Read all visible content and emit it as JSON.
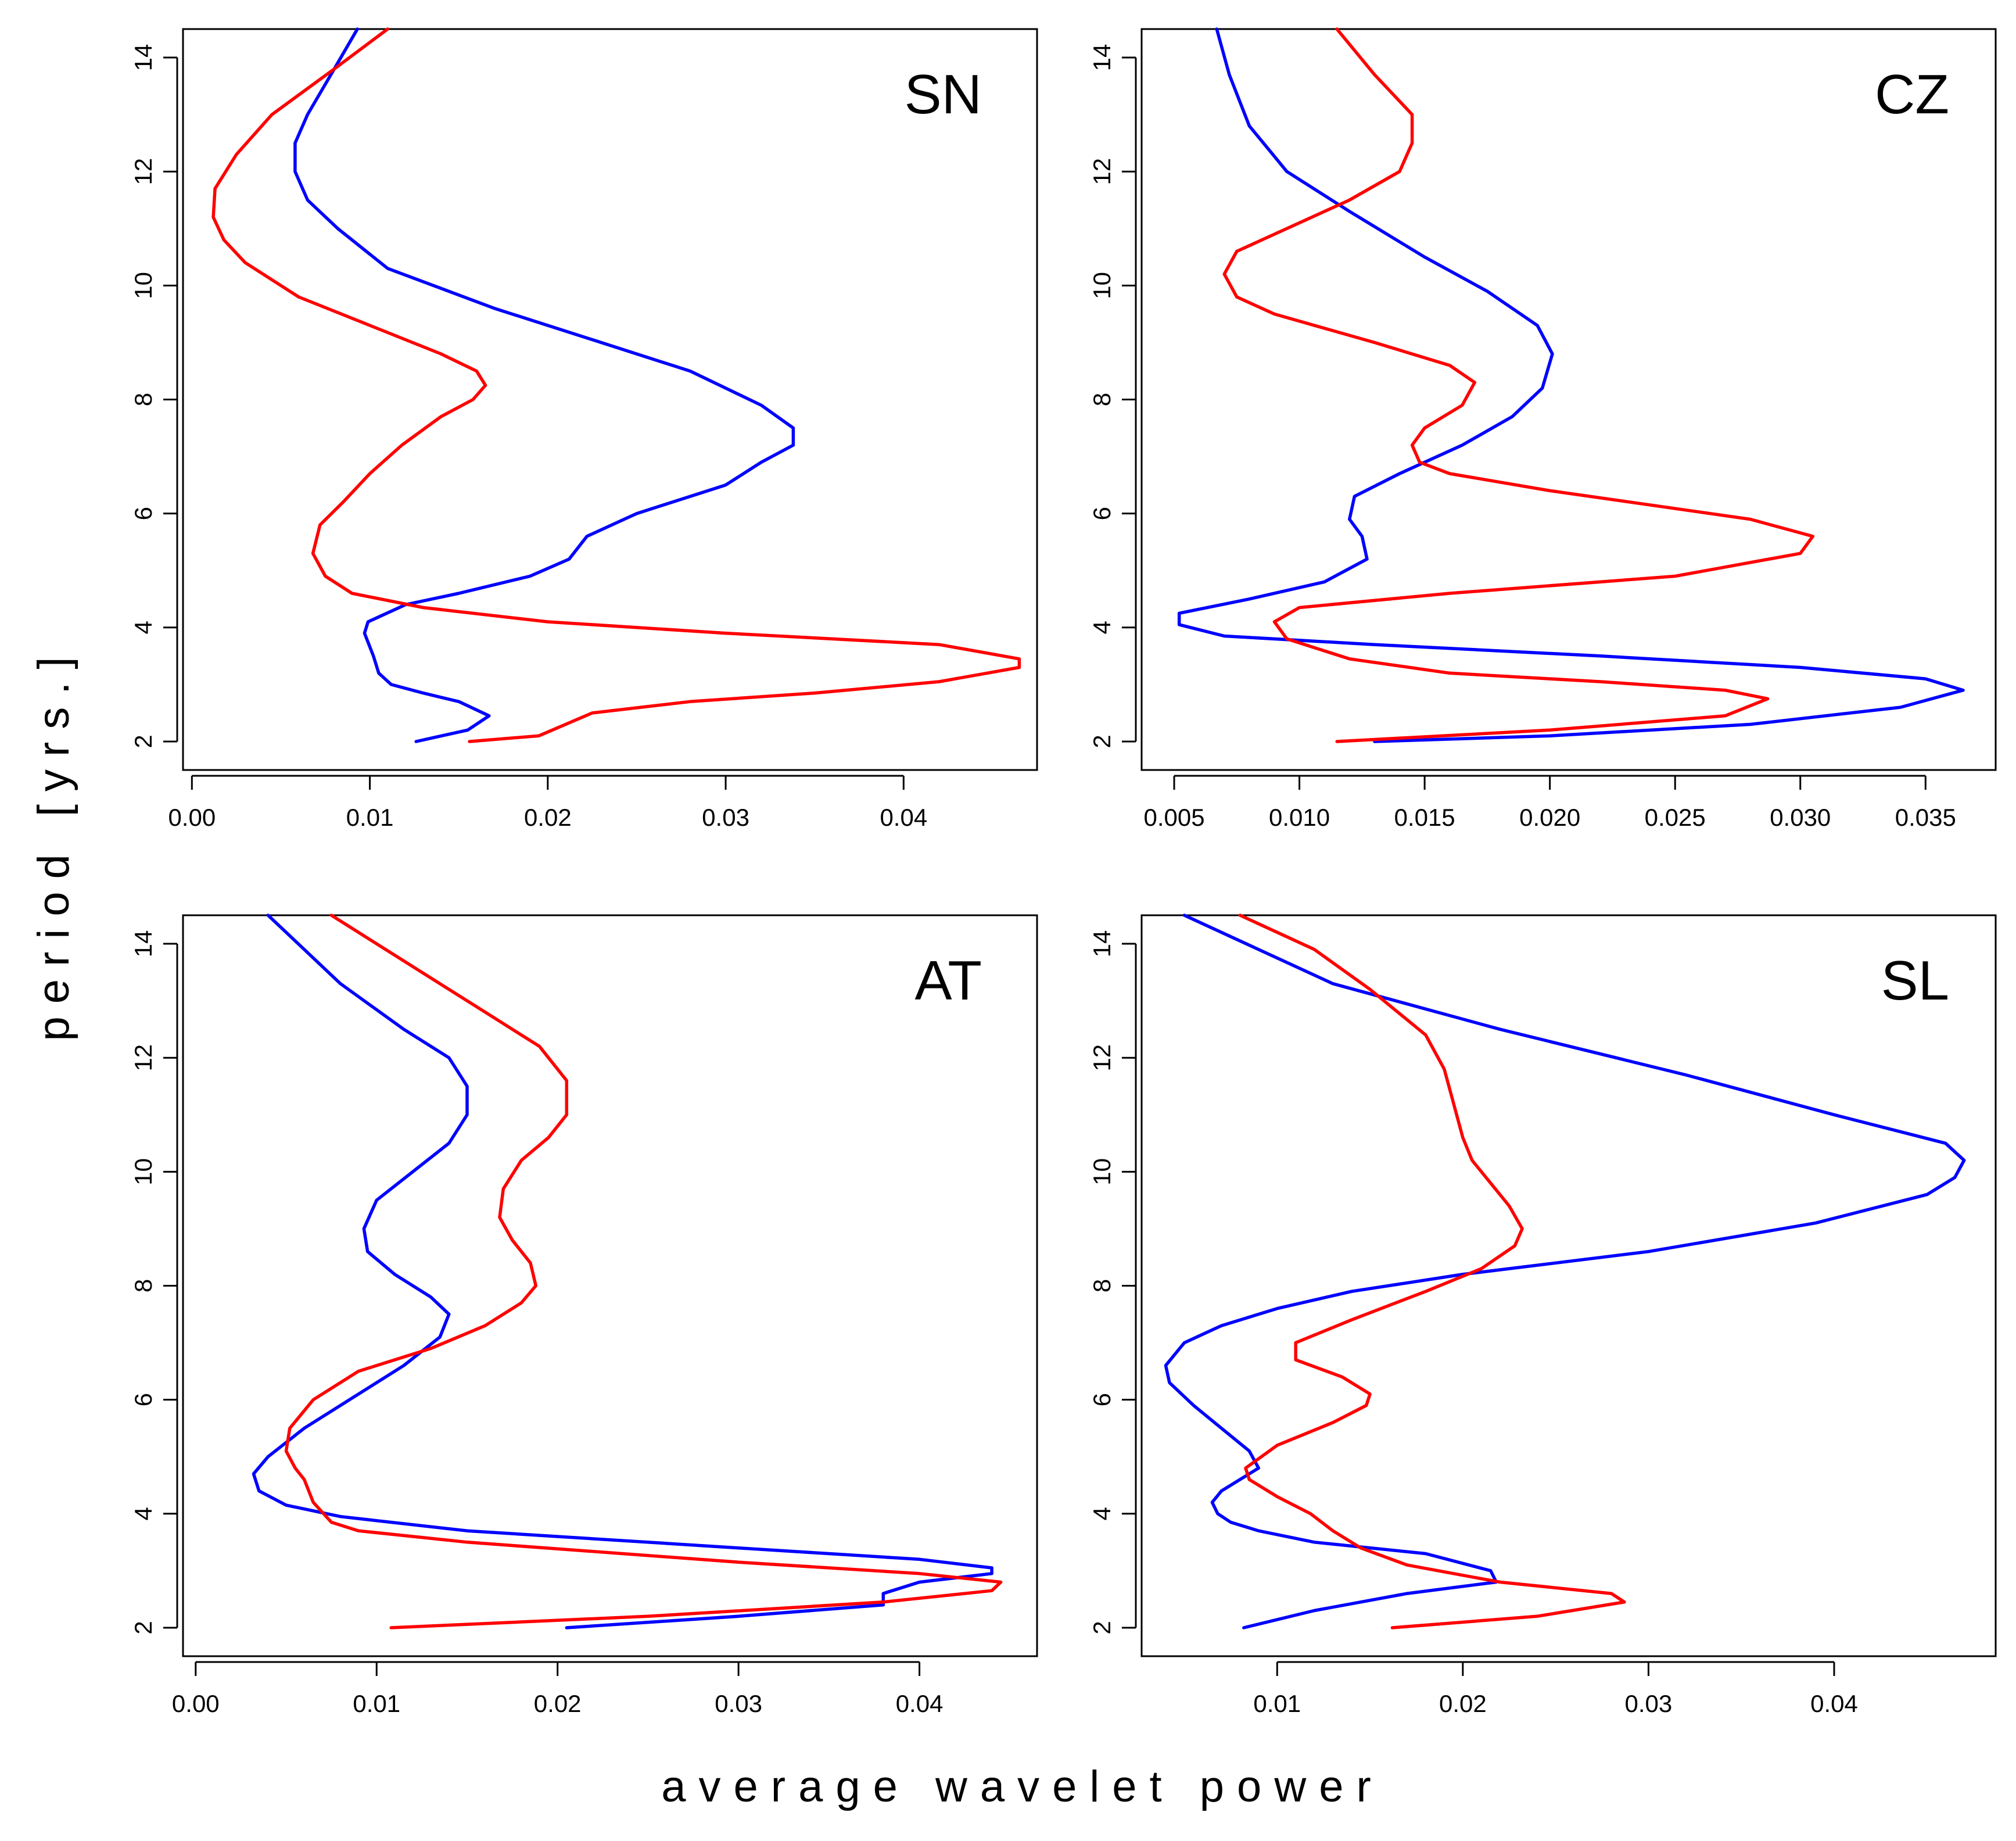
{
  "figure": {
    "xlabel": "average wavelet power",
    "ylabel": "period [yrs.]"
  },
  "colors": {
    "series_a": "#0000ff",
    "series_b": "#ff0000"
  },
  "chart_data": [
    {
      "type": "line",
      "panel": "SN",
      "title": "SN",
      "xlim": [
        -0.0005,
        0.0475
      ],
      "ylim": [
        1.5,
        14.5
      ],
      "xticks": [
        0.0,
        0.01,
        0.02,
        0.03,
        0.04
      ],
      "xtick_labels": [
        "0.00",
        "0.01",
        "0.02",
        "0.03",
        "0.04"
      ],
      "yticks": [
        2,
        4,
        6,
        8,
        10,
        12,
        14
      ],
      "ytick_labels": [
        "2",
        "4",
        "6",
        "8",
        "10",
        "12",
        "14"
      ],
      "series": [
        {
          "name": "blue",
          "color": "#0000ff",
          "x": [
            0.0126,
            0.0155,
            0.0167,
            0.015,
            0.013,
            0.0112,
            0.0105,
            0.0102,
            0.0097,
            0.0099,
            0.012,
            0.015,
            0.019,
            0.0212,
            0.0222,
            0.025,
            0.03,
            0.032,
            0.0338,
            0.0338,
            0.032,
            0.028,
            0.023,
            0.017,
            0.011,
            0.0082,
            0.0065,
            0.0058,
            0.0058,
            0.0065,
            0.008,
            0.0093
          ],
          "y": [
            2.0,
            2.2,
            2.45,
            2.7,
            2.85,
            3.0,
            3.2,
            3.5,
            3.9,
            4.1,
            4.4,
            4.6,
            4.9,
            5.2,
            5.6,
            6.0,
            6.5,
            6.9,
            7.2,
            7.5,
            7.9,
            8.5,
            9.0,
            9.6,
            10.3,
            11.0,
            11.5,
            12.0,
            12.5,
            13.0,
            13.8,
            14.5
          ]
        },
        {
          "name": "red",
          "color": "#ff0000",
          "x": [
            0.0156,
            0.0195,
            0.0225,
            0.028,
            0.035,
            0.042,
            0.0465,
            0.0465,
            0.042,
            0.03,
            0.02,
            0.013,
            0.009,
            0.0075,
            0.0068,
            0.0072,
            0.0085,
            0.01,
            0.0118,
            0.014,
            0.0158,
            0.0165,
            0.016,
            0.014,
            0.01,
            0.006,
            0.003,
            0.0018,
            0.0012,
            0.0013,
            0.0025,
            0.0045,
            0.008,
            0.011
          ],
          "y": [
            2.0,
            2.1,
            2.5,
            2.7,
            2.85,
            3.05,
            3.3,
            3.45,
            3.7,
            3.9,
            4.1,
            4.35,
            4.6,
            4.9,
            5.3,
            5.8,
            6.2,
            6.7,
            7.2,
            7.7,
            8.0,
            8.25,
            8.5,
            8.8,
            9.3,
            9.8,
            10.4,
            10.8,
            11.2,
            11.7,
            12.3,
            13.0,
            13.8,
            14.5
          ]
        }
      ]
    },
    {
      "type": "line",
      "panel": "CZ",
      "title": "CZ",
      "xlim": [
        0.0037,
        0.0378
      ],
      "ylim": [
        1.5,
        14.5
      ],
      "xticks": [
        0.005,
        0.01,
        0.015,
        0.02,
        0.025,
        0.03,
        0.035
      ],
      "xtick_labels": [
        "0.005",
        "0.010",
        "0.015",
        "0.020",
        "0.025",
        "0.030",
        "0.035"
      ],
      "yticks": [
        2,
        4,
        6,
        8,
        10,
        12,
        14
      ],
      "ytick_labels": [
        "2",
        "4",
        "6",
        "8",
        "10",
        "12",
        "14"
      ],
      "series": [
        {
          "name": "blue",
          "color": "#0000ff",
          "x": [
            0.013,
            0.02,
            0.028,
            0.034,
            0.0365,
            0.035,
            0.03,
            0.022,
            0.013,
            0.007,
            0.0052,
            0.0052,
            0.008,
            0.011,
            0.0127,
            0.0125,
            0.012,
            0.0122,
            0.014,
            0.0165,
            0.0185,
            0.0197,
            0.0201,
            0.0195,
            0.0175,
            0.015,
            0.012,
            0.0095,
            0.008,
            0.0072,
            0.0067
          ],
          "y": [
            2.0,
            2.1,
            2.3,
            2.6,
            2.9,
            3.1,
            3.3,
            3.5,
            3.7,
            3.85,
            4.05,
            4.25,
            4.5,
            4.8,
            5.2,
            5.6,
            5.9,
            6.3,
            6.7,
            7.2,
            7.7,
            8.2,
            8.8,
            9.3,
            9.9,
            10.5,
            11.3,
            12.0,
            12.8,
            13.7,
            14.5
          ]
        },
        {
          "name": "red",
          "color": "#ff0000",
          "x": [
            0.0115,
            0.02,
            0.027,
            0.0287,
            0.027,
            0.022,
            0.016,
            0.012,
            0.0095,
            0.009,
            0.01,
            0.016,
            0.025,
            0.03,
            0.0305,
            0.028,
            0.02,
            0.016,
            0.0148,
            0.0145,
            0.015,
            0.0165,
            0.017,
            0.016,
            0.013,
            0.009,
            0.0075,
            0.007,
            0.0075,
            0.0095,
            0.012,
            0.014,
            0.0145,
            0.0145,
            0.013,
            0.0115
          ],
          "y": [
            2.0,
            2.2,
            2.45,
            2.75,
            2.9,
            3.05,
            3.2,
            3.45,
            3.8,
            4.1,
            4.35,
            4.6,
            4.9,
            5.3,
            5.6,
            5.9,
            6.4,
            6.7,
            6.9,
            7.2,
            7.5,
            7.9,
            8.3,
            8.6,
            9.0,
            9.5,
            9.8,
            10.2,
            10.6,
            11.0,
            11.5,
            12.0,
            12.5,
            13.0,
            13.7,
            14.5
          ]
        }
      ]
    },
    {
      "type": "line",
      "panel": "AT",
      "title": "AT",
      "xlim": [
        -0.0007,
        0.0465
      ],
      "ylim": [
        1.5,
        14.5
      ],
      "xticks": [
        0.0,
        0.01,
        0.02,
        0.03,
        0.04
      ],
      "xtick_labels": [
        "0.00",
        "0.01",
        "0.02",
        "0.03",
        "0.04"
      ],
      "yticks": [
        2,
        4,
        6,
        8,
        10,
        12,
        14
      ],
      "ytick_labels": [
        "2",
        "4",
        "6",
        "8",
        "10",
        "12",
        "14"
      ],
      "series": [
        {
          "name": "blue",
          "color": "#0000ff",
          "x": [
            0.0205,
            0.03,
            0.038,
            0.038,
            0.04,
            0.044,
            0.044,
            0.04,
            0.03,
            0.015,
            0.008,
            0.005,
            0.0035,
            0.0032,
            0.004,
            0.006,
            0.0085,
            0.0115,
            0.0135,
            0.014,
            0.013,
            0.011,
            0.0095,
            0.0093,
            0.01,
            0.012,
            0.014,
            0.015,
            0.015,
            0.014,
            0.0115,
            0.008,
            0.004
          ],
          "y": [
            2.0,
            2.2,
            2.4,
            2.6,
            2.8,
            2.95,
            3.05,
            3.2,
            3.4,
            3.7,
            3.95,
            4.15,
            4.4,
            4.7,
            5.0,
            5.5,
            6.0,
            6.6,
            7.1,
            7.5,
            7.8,
            8.2,
            8.6,
            9.0,
            9.5,
            10.0,
            10.5,
            11.0,
            11.5,
            12.0,
            12.5,
            13.3,
            14.5
          ]
        },
        {
          "name": "red",
          "color": "#ff0000",
          "x": [
            0.0108,
            0.025,
            0.038,
            0.044,
            0.0445,
            0.04,
            0.03,
            0.015,
            0.009,
            0.0075,
            0.0065,
            0.006,
            0.0055,
            0.005,
            0.0052,
            0.0065,
            0.009,
            0.013,
            0.016,
            0.018,
            0.0188,
            0.0185,
            0.0175,
            0.0168,
            0.017,
            0.018,
            0.0195,
            0.0205,
            0.0205,
            0.019,
            0.016,
            0.012,
            0.0075
          ],
          "y": [
            2.0,
            2.2,
            2.45,
            2.65,
            2.8,
            2.95,
            3.15,
            3.5,
            3.7,
            3.85,
            4.2,
            4.6,
            4.8,
            5.1,
            5.5,
            6.0,
            6.5,
            6.9,
            7.3,
            7.7,
            8.0,
            8.4,
            8.8,
            9.2,
            9.7,
            10.2,
            10.6,
            11.0,
            11.6,
            12.2,
            12.8,
            13.6,
            14.5
          ]
        }
      ]
    },
    {
      "type": "line",
      "panel": "SL",
      "title": "SL",
      "xlim": [
        0.0027,
        0.0487
      ],
      "ylim": [
        1.5,
        14.5
      ],
      "xticks": [
        0.01,
        0.02,
        0.03,
        0.04
      ],
      "xtick_labels": [
        "0.01",
        "0.02",
        "0.03",
        "0.04"
      ],
      "yticks": [
        2,
        4,
        6,
        8,
        10,
        12,
        14
      ],
      "ytick_labels": [
        "2",
        "4",
        "6",
        "8",
        "10",
        "12",
        "14"
      ],
      "series": [
        {
          "name": "blue",
          "color": "#0000ff",
          "x": [
            0.0082,
            0.012,
            0.017,
            0.0218,
            0.0215,
            0.018,
            0.012,
            0.009,
            0.0075,
            0.0068,
            0.0065,
            0.007,
            0.009,
            0.0085,
            0.007,
            0.0055,
            0.0042,
            0.004,
            0.005,
            0.007,
            0.01,
            0.014,
            0.02,
            0.03,
            0.039,
            0.045,
            0.0465,
            0.047,
            0.046,
            0.04,
            0.032,
            0.022,
            0.013,
            0.005
          ],
          "y": [
            2.0,
            2.3,
            2.6,
            2.8,
            3.0,
            3.3,
            3.5,
            3.7,
            3.85,
            4.0,
            4.2,
            4.4,
            4.8,
            5.1,
            5.5,
            5.9,
            6.3,
            6.6,
            7.0,
            7.3,
            7.6,
            7.9,
            8.2,
            8.6,
            9.1,
            9.6,
            9.9,
            10.2,
            10.5,
            11.0,
            11.7,
            12.5,
            13.3,
            14.5
          ]
        },
        {
          "name": "red",
          "color": "#ff0000",
          "x": [
            0.0162,
            0.024,
            0.0287,
            0.028,
            0.022,
            0.017,
            0.0145,
            0.013,
            0.0118,
            0.01,
            0.0085,
            0.0083,
            0.01,
            0.013,
            0.0148,
            0.015,
            0.0135,
            0.011,
            0.011,
            0.014,
            0.018,
            0.021,
            0.0228,
            0.0232,
            0.0225,
            0.0215,
            0.0205,
            0.02,
            0.0195,
            0.019,
            0.018,
            0.015,
            0.012,
            0.008
          ],
          "y": [
            2.0,
            2.2,
            2.45,
            2.6,
            2.8,
            3.1,
            3.4,
            3.7,
            4.0,
            4.3,
            4.6,
            4.8,
            5.2,
            5.6,
            5.9,
            6.1,
            6.4,
            6.7,
            7.0,
            7.4,
            7.9,
            8.3,
            8.7,
            9.0,
            9.4,
            9.8,
            10.2,
            10.6,
            11.2,
            11.8,
            12.4,
            13.2,
            13.9,
            14.5
          ]
        }
      ]
    }
  ]
}
